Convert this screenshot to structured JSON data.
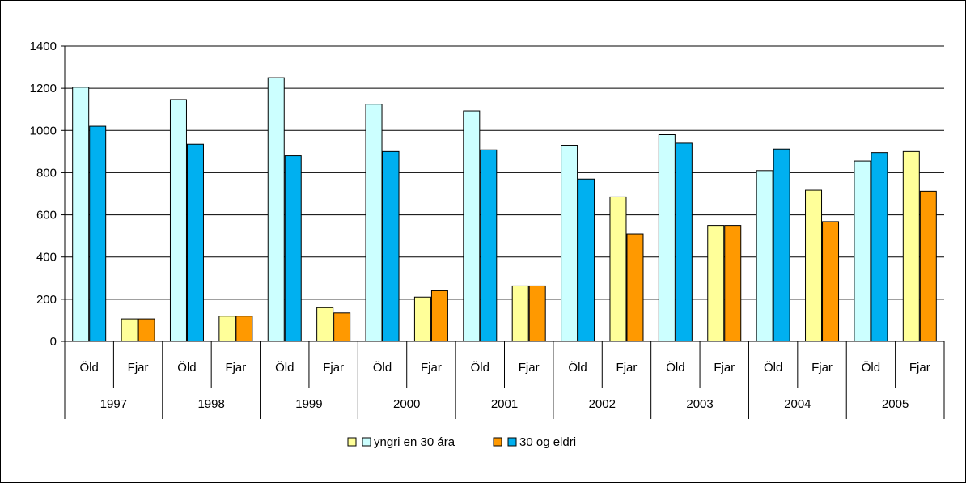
{
  "chart_data": {
    "type": "bar",
    "title": "",
    "xlabel": "",
    "ylabel": "",
    "ylim": [
      0,
      1400
    ],
    "yticks": [
      0,
      200,
      400,
      600,
      800,
      1000,
      1200,
      1400
    ],
    "grid": true,
    "legend_position": "bottom",
    "years": [
      "1997",
      "1998",
      "1999",
      "2000",
      "2001",
      "2002",
      "2003",
      "2004",
      "2005"
    ],
    "subcategories": [
      "Öld",
      "Fjar"
    ],
    "legend": [
      {
        "label": "yngri en 30 ára",
        "colors": [
          "#FFFF99",
          "#CCFFFF"
        ]
      },
      {
        "label": "30 og eldri",
        "colors": [
          "#FF9900",
          "#00B0F0"
        ]
      }
    ],
    "groups": [
      {
        "year": "1997",
        "Öld": {
          "yngri": 1205,
          "eldri": 1020
        },
        "Fjar": {
          "yngri": 107,
          "eldri": 107
        }
      },
      {
        "year": "1998",
        "Öld": {
          "yngri": 1147,
          "eldri": 935
        },
        "Fjar": {
          "yngri": 120,
          "eldri": 120
        }
      },
      {
        "year": "1999",
        "Öld": {
          "yngri": 1250,
          "eldri": 880
        },
        "Fjar": {
          "yngri": 160,
          "eldri": 135
        }
      },
      {
        "year": "2000",
        "Öld": {
          "yngri": 1125,
          "eldri": 900
        },
        "Fjar": {
          "yngri": 210,
          "eldri": 240
        }
      },
      {
        "year": "2001",
        "Öld": {
          "yngri": 1093,
          "eldri": 908
        },
        "Fjar": {
          "yngri": 263,
          "eldri": 263
        }
      },
      {
        "year": "2002",
        "Öld": {
          "yngri": 930,
          "eldri": 770
        },
        "Fjar": {
          "yngri": 685,
          "eldri": 510
        }
      },
      {
        "year": "2003",
        "Öld": {
          "yngri": 980,
          "eldri": 940
        },
        "Fjar": {
          "yngri": 550,
          "eldri": 550
        }
      },
      {
        "year": "2004",
        "Öld": {
          "yngri": 810,
          "eldri": 912
        },
        "Fjar": {
          "yngri": 717,
          "eldri": 568
        }
      },
      {
        "year": "2005",
        "Öld": {
          "yngri": 855,
          "eldri": 895
        },
        "Fjar": {
          "yngri": 900,
          "eldri": 712
        }
      }
    ],
    "colors": {
      "Öld": {
        "yngri": "#CCFFFF",
        "eldri": "#00B0F0"
      },
      "Fjar": {
        "yngri": "#FFFF99",
        "eldri": "#FF9900"
      },
      "plot_background": "#FFFFFF",
      "gridline": "#000000",
      "bar_outline": "#000000"
    }
  }
}
